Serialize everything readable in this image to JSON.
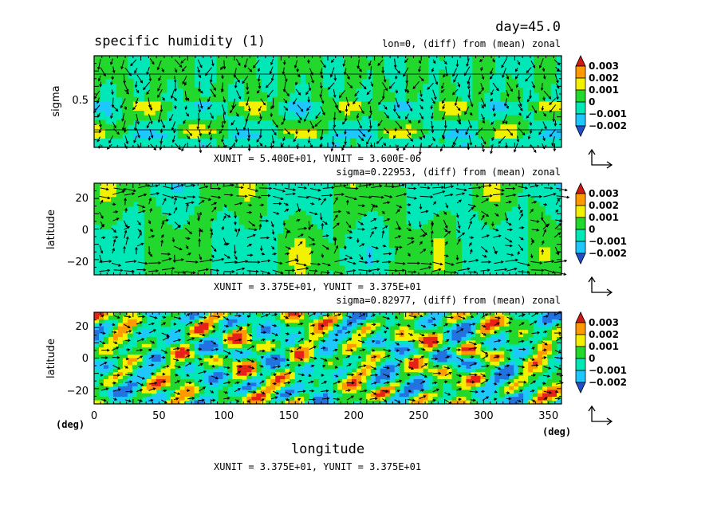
{
  "figure": {
    "day_label": "day=45.0",
    "title": "specific humidity (1)",
    "x_axis_label": "longitude",
    "x_unit_left": "(deg)",
    "x_unit_right": "(deg)"
  },
  "palette": {
    "levels": [
      "-0.002",
      "-0.001",
      "0",
      "0.001",
      "0.002",
      "0.003"
    ],
    "colors": [
      "#2272e0",
      "#1ec8ff",
      "#00e8b8",
      "#23d82c",
      "#f2f200",
      "#ff9a00",
      "#e8201a"
    ],
    "lower_extend_color": "#2050c8",
    "upper_extend_color": "#d01810"
  },
  "chart_data": [
    {
      "type": "heatmap",
      "panel": "top",
      "header": "lon=0, (diff) from (mean) zonal",
      "footer": "XUNIT = 5.400E+01, YUNIT = 3.600E-06",
      "xlabel": "",
      "ylabel": "sigma",
      "xlim": [
        -90,
        90
      ],
      "ylim": [
        0,
        1
      ],
      "y_ticks": [
        "0.5"
      ],
      "colorbar_levels": [
        -0.002,
        -0.001,
        0,
        0.001,
        0.002,
        0.003
      ],
      "overlay": "velocity vectors"
    },
    {
      "type": "heatmap",
      "panel": "middle",
      "header": "sigma=0.22953, (diff) from (mean) zonal",
      "footer": "XUNIT = 3.375E+01, YUNIT = 3.375E+01",
      "xlabel": "",
      "ylabel": "latitude",
      "xlim": [
        0,
        360
      ],
      "ylim": [
        -30,
        30
      ],
      "y_ticks": [
        "20",
        "0",
        "−20"
      ],
      "colorbar_levels": [
        -0.002,
        -0.001,
        0,
        0.001,
        0.002,
        0.003
      ],
      "overlay": "velocity vectors"
    },
    {
      "type": "heatmap",
      "panel": "bottom",
      "header": "sigma=0.82977, (diff) from (mean) zonal",
      "footer": "XUNIT = 3.375E+01, YUNIT = 3.375E+01",
      "xlabel": "longitude",
      "ylabel": "latitude",
      "xlim": [
        0,
        360
      ],
      "ylim": [
        -30,
        30
      ],
      "x_ticks": [
        "0",
        "50",
        "100",
        "150",
        "200",
        "250",
        "300",
        "350"
      ],
      "x_tick_values": [
        0,
        50,
        100,
        150,
        200,
        250,
        300,
        350
      ],
      "y_ticks": [
        "20",
        "0",
        "−20"
      ],
      "colorbar_levels": [
        -0.002,
        -0.001,
        0,
        0.001,
        0.002,
        0.003
      ],
      "overlay": "velocity vectors"
    }
  ]
}
